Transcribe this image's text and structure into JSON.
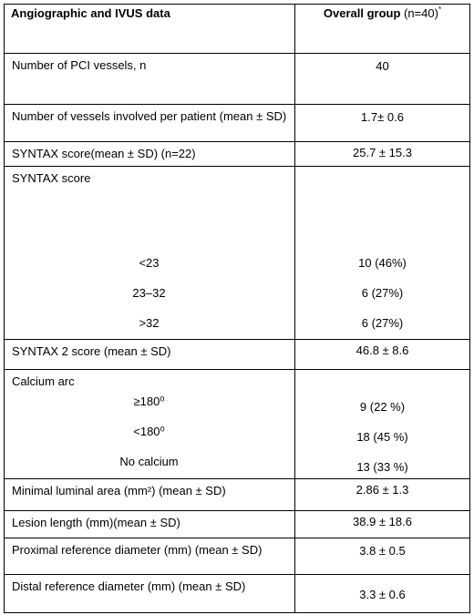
{
  "header": {
    "label": "Angiographic and IVUS data",
    "group_title": "Overall group",
    "group_n": "(n=40)",
    "note": "*"
  },
  "rows": [
    {
      "label": "Number of PCI vessels, n",
      "value": "40"
    },
    {
      "label": "Number of vessels involved per patient (mean ± SD)",
      "value": "1.7± 0.6"
    },
    {
      "label": "SYNTAX score(mean ± SD) (n=22)",
      "value": "25.7 ± 15.3"
    },
    {
      "label": "SYNTAX score",
      "items": [
        {
          "label": "<23",
          "value": "10 (46%)"
        },
        {
          "label": "23–32",
          "value": "6 (27%)"
        },
        {
          "label": ">32",
          "value": "6 (27%)"
        }
      ]
    },
    {
      "label": "SYNTAX 2 score (mean ± SD)",
      "value": "46.8 ± 8.6"
    },
    {
      "label": "Calcium arc",
      "items": [
        {
          "label": "≥180⁰",
          "value": "9 (22 %)"
        },
        {
          "label": "<180⁰",
          "value": "18 (45 %)"
        },
        {
          "label": "No calcium",
          "value": "13 (33 %)"
        }
      ]
    },
    {
      "label": "Minimal luminal area (mm²) (mean ± SD)",
      "value": "2.86 ± 1.3"
    },
    {
      "label": "Lesion length (mm)(mean ± SD)",
      "value": "38.9 ± 18.6"
    },
    {
      "label": "Proximal reference diameter (mm) (mean ± SD)",
      "value": "3.8 ± 0.5"
    },
    {
      "label": "Distal reference diameter (mm) (mean ± SD)",
      "value": "3.3 ± 0.6"
    }
  ]
}
